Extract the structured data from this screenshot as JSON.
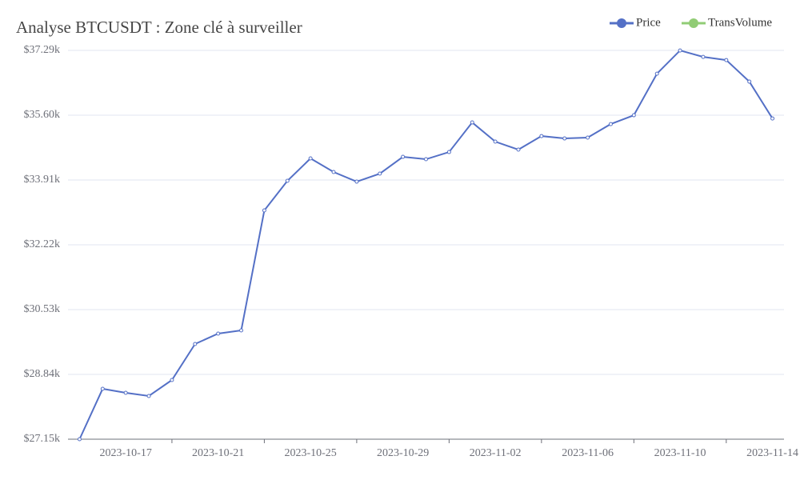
{
  "chart_data": {
    "type": "line",
    "title": "Analyse BTCUSDT : Zone clé à surveiller",
    "categories": [
      null,
      null,
      "2023-10-17",
      null,
      null,
      null,
      "2023-10-21",
      null,
      null,
      null,
      "2023-10-25",
      null,
      null,
      null,
      "2023-10-29",
      null,
      null,
      null,
      "2023-11-02",
      null,
      null,
      null,
      "2023-11-06",
      null,
      null,
      null,
      "2023-11-10",
      null,
      null,
      null,
      "2023-11-14"
    ],
    "series": [
      {
        "name": "Price",
        "color": "#5470c6",
        "values": [
          27150,
          28464,
          28360,
          28277,
          28694,
          29633,
          29904,
          29988,
          33117,
          33889,
          34473,
          34118,
          33867,
          34076,
          34514,
          34452,
          34639,
          35411,
          34911,
          34702,
          35056,
          34994,
          35015,
          35369,
          35599,
          36683,
          37288,
          37121,
          37038,
          36475,
          35515
        ]
      },
      {
        "name": "TransVolume",
        "color": "#91cc75",
        "values": [
          null,
          null,
          null,
          null,
          null,
          null,
          null,
          null,
          null,
          null,
          null,
          null,
          null,
          null,
          null,
          null,
          null,
          null,
          null,
          null,
          null,
          null,
          null,
          null,
          null,
          null,
          null,
          null,
          null,
          null,
          null
        ]
      }
    ],
    "ylim": [
      27150,
      37290
    ],
    "yticks": [
      {
        "value": 27150,
        "label": "$27.15k"
      },
      {
        "value": 28840,
        "label": "$28.84k"
      },
      {
        "value": 30530,
        "label": "$30.53k"
      },
      {
        "value": 32220,
        "label": "$32.22k"
      },
      {
        "value": 33910,
        "label": "$33.91k"
      },
      {
        "value": 35600,
        "label": "$35.60k"
      },
      {
        "value": 37290,
        "label": "$37.29k"
      }
    ],
    "grid": true
  }
}
